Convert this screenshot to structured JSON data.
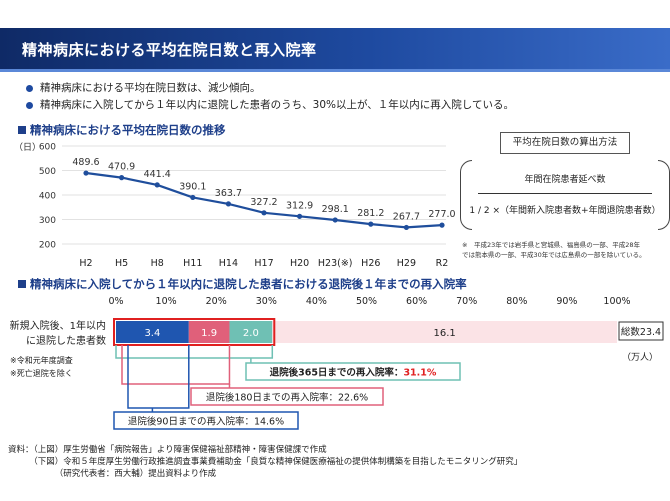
{
  "slide_title": "精神病床における平均在院日数と再入院率",
  "bullets": [
    "精神病床における平均在院日数は、減少傾向。",
    "精神病床に入院してから１年以内に退院した患者のうち、30%以上が、１年以内に再入院している。"
  ],
  "section1_title": "精神病床における平均在院日数の推移",
  "section2_title": "精神病床に入院してから１年以内に退院した患者における退院後１年までの再入院率",
  "formula_box_label": "平均在院日数の算出方法",
  "formula_numerator": "年間在院患者延べ数",
  "formula_denominator": "1 / 2 ×（年間新入院患者数+年間退院患者数）",
  "note_line1": "※　平成23年では岩手県と宮城県、福島県の一部、平成28年",
  "note_line2": "では熊本県の一部、平成30年では広島県の一部を除いている。",
  "sources": [
    "資料：（上図）厚生労働省「病院報告」より障害保健福祉部精神・障害保健課で作成",
    "　　　（下図）令和５年度厚生労働行政推進調査事業費補助金「良質な精神保健医療福祉の提供体制構築を目指したモニタリング研究」",
    "　　　　　　（研究代表者：西大輔）提出資料より作成"
  ],
  "chart_data": [
    {
      "type": "line",
      "title": "精神病床における平均在院日数の推移",
      "ylabel": "（日）",
      "categories": [
        "H2",
        "H5",
        "H8",
        "H11",
        "H14",
        "H17",
        "H20",
        "H23(※)",
        "H26",
        "H29",
        "R2"
      ],
      "values": [
        489.6,
        470.9,
        441.4,
        390.1,
        363.7,
        327.2,
        312.9,
        298.1,
        281.2,
        267.7,
        277.0
      ],
      "ylim": [
        200,
        600
      ],
      "yticks": [
        200,
        300,
        400,
        500,
        600
      ],
      "color": "#1f4e9c",
      "grid": true
    },
    {
      "type": "bar",
      "orientation": "horizontal-stacked",
      "title": "精神病床に入院してから１年以内に退院した患者における退院後１年までの再入院率",
      "row_label_line1": "新規入院後、1年以内",
      "row_label_line2": "に退院した患者数",
      "row_note_line1": "※令和元年度調査",
      "row_note_line2": "※死亡退院を除く",
      "x_ticks": [
        "0%",
        "10%",
        "20%",
        "30%",
        "40%",
        "50%",
        "60%",
        "70%",
        "80%",
        "90%",
        "100%"
      ],
      "total": 23.4,
      "total_label": "総数23.4",
      "unit": "（万人）",
      "segments": [
        {
          "value": 3.4,
          "label": "3.4",
          "color": "#1f56b0"
        },
        {
          "value": 1.9,
          "label": "1.9",
          "color": "#e0607a"
        },
        {
          "value": 2.0,
          "label": "2.0",
          "color": "#6fc0b4"
        },
        {
          "value": 16.1,
          "label": "16.1",
          "color": "#fbe3e6"
        }
      ],
      "annotations": [
        {
          "text": "退院後90日までの再入院率：14.6%",
          "color": "#1f56b0"
        },
        {
          "text": "退院後180日までの再入院率：22.6%",
          "color": "#e0607a"
        },
        {
          "text_main": "退院後365日までの再入院率：",
          "text_value": "31.1%",
          "color": "#6fc0b4",
          "value_color": "#e02020"
        }
      ]
    }
  ]
}
